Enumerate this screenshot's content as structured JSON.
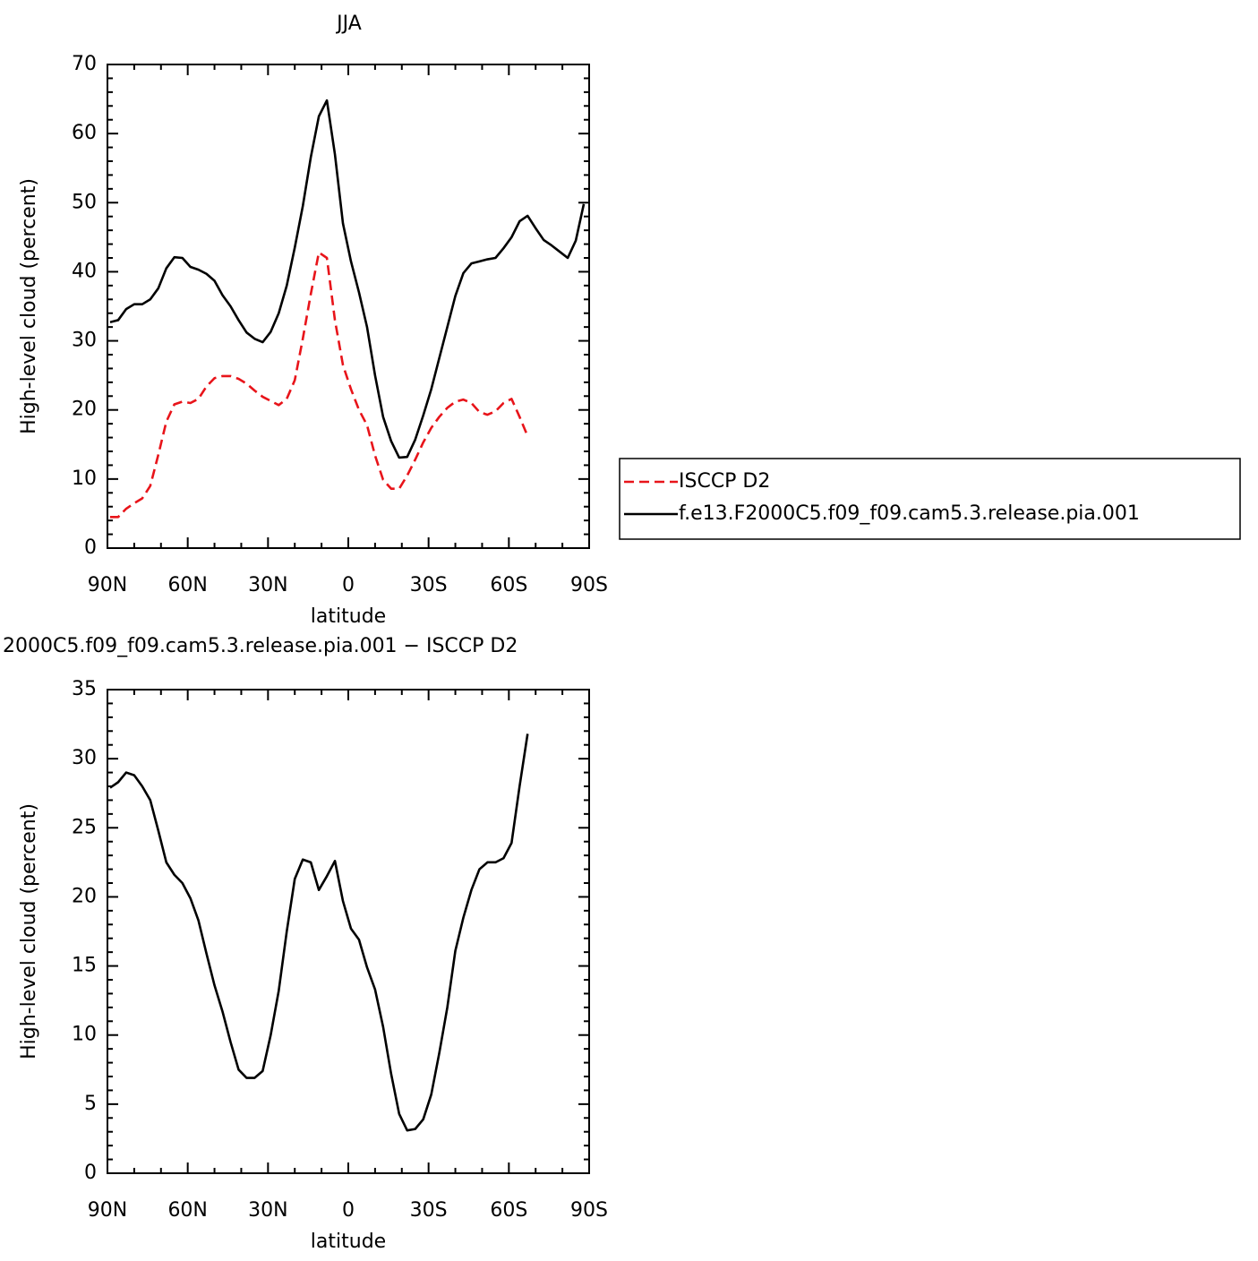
{
  "chart_data": [
    {
      "type": "line",
      "title": "JJA",
      "xlabel": "latitude",
      "ylabel": "High-level cloud (percent)",
      "x": [
        89,
        86,
        83,
        80,
        77,
        74,
        71,
        68,
        65,
        62,
        59,
        56,
        53,
        50,
        47,
        44,
        41,
        38,
        35,
        32,
        29,
        26,
        23,
        20,
        17,
        14,
        11,
        8,
        5,
        2,
        -1,
        -4,
        -7,
        -10,
        -13,
        -16,
        -19,
        -22,
        -25,
        -28,
        -31,
        -34,
        -37,
        -40,
        -43,
        -46,
        -49,
        -52,
        -55,
        -58,
        -61,
        -64,
        -67,
        -70,
        -73,
        -76,
        -79,
        -82,
        -85,
        -88
      ],
      "series": [
        {
          "name": "ISCCP D2",
          "color": "#e8141a",
          "linestyle": "dashed",
          "values": [
            4.5,
            4.5,
            5.7,
            6.5,
            7.2,
            9.0,
            13.5,
            18.3,
            20.8,
            21.2,
            21.0,
            21.6,
            23.4,
            24.6,
            24.9,
            24.9,
            24.5,
            23.8,
            22.8,
            21.9,
            21.3,
            20.7,
            21.6,
            24.3,
            30.3,
            36.8,
            42.8,
            42.0,
            33.0,
            26.5,
            23.0,
            20.0,
            17.8,
            13.4,
            9.9,
            8.6,
            8.6,
            10.5,
            12.8,
            15.3,
            17.4,
            19.0,
            20.3,
            21.2,
            21.5,
            21.0,
            19.7,
            19.3,
            19.8,
            21.0,
            21.6,
            19.0,
            16.2,
            null,
            null,
            null,
            null,
            null,
            null,
            null
          ]
        },
        {
          "name": "f.e13.F2000C5.f09_f09.cam5.3.release.pia.001",
          "color": "#000000",
          "linestyle": "solid",
          "values": [
            32.7,
            33.0,
            34.6,
            35.3,
            35.3,
            36.0,
            37.6,
            40.5,
            42.1,
            42.0,
            40.7,
            40.3,
            39.7,
            38.7,
            36.6,
            35.0,
            33.0,
            31.2,
            30.3,
            29.8,
            31.3,
            34.0,
            38.0,
            43.5,
            49.5,
            56.6,
            62.5,
            64.8,
            57.0,
            47.0,
            41.5,
            37.0,
            32.0,
            25.0,
            19.0,
            15.5,
            13.1,
            13.2,
            15.7,
            19.2,
            23.0,
            27.5,
            32.0,
            36.5,
            39.8,
            41.2,
            41.5,
            41.8,
            42.0,
            43.4,
            45.0,
            47.3,
            48.1,
            46.3,
            44.6,
            43.8,
            42.9,
            42.0,
            44.5,
            49.8
          ]
        }
      ],
      "xlim": [
        90,
        -90
      ],
      "xticks": [
        {
          "value": 90,
          "label": "90N"
        },
        {
          "value": 60,
          "label": "60N"
        },
        {
          "value": 30,
          "label": "30N"
        },
        0,
        {
          "value": -30,
          "label": "30S"
        },
        {
          "value": -60,
          "label": "60S"
        },
        {
          "value": -90,
          "label": "90S"
        }
      ],
      "ylim": [
        0,
        70
      ],
      "yticks": [
        0,
        10,
        20,
        30,
        40,
        50,
        60,
        70
      ],
      "legend": "right"
    },
    {
      "type": "line",
      "title": "2000C5.f09_f09.cam5.3.release.pia.001 − ISCCP D2",
      "xlabel": "latitude",
      "ylabel": "High-level cloud (percent)",
      "x": [
        89,
        86,
        83,
        80,
        77,
        74,
        71,
        68,
        65,
        62,
        59,
        56,
        53,
        50,
        47,
        44,
        41,
        38,
        35,
        32,
        29,
        26,
        23,
        20,
        17,
        14,
        11,
        8,
        5,
        2,
        -1,
        -4,
        -7,
        -10,
        -13,
        -16,
        -19,
        -22,
        -25,
        -28,
        -31,
        -34,
        -37,
        -40,
        -43,
        -46,
        -49,
        -52,
        -55,
        -58,
        -61,
        -64,
        -67,
        -70,
        -73,
        -76,
        -79,
        -82,
        -85,
        -88
      ],
      "series": [
        {
          "color": "#000000",
          "linestyle": "solid",
          "values": [
            27.9,
            28.3,
            29.0,
            28.8,
            28.0,
            27.0,
            24.8,
            22.5,
            21.6,
            21.0,
            19.9,
            18.3,
            15.9,
            13.6,
            11.7,
            9.5,
            7.5,
            6.9,
            6.9,
            7.4,
            10.0,
            13.2,
            17.5,
            21.3,
            22.7,
            22.5,
            20.5,
            21.5,
            22.6,
            19.7,
            17.7,
            16.9,
            14.9,
            13.3,
            10.6,
            7.2,
            4.3,
            3.1,
            3.2,
            3.9,
            5.7,
            8.7,
            12.0,
            16.1,
            18.5,
            20.5,
            22.0,
            22.5,
            22.5,
            22.8,
            23.9,
            28.0,
            31.8,
            null,
            null,
            null,
            null,
            null,
            null,
            null
          ]
        }
      ],
      "xlim": [
        90,
        -90
      ],
      "xticks": [
        {
          "value": 90,
          "label": "90N"
        },
        {
          "value": 60,
          "label": "60N"
        },
        {
          "value": 30,
          "label": "30N"
        },
        0,
        {
          "value": -30,
          "label": "30S"
        },
        {
          "value": -60,
          "label": "60S"
        },
        {
          "value": -90,
          "label": "90S"
        }
      ],
      "ylim": [
        0,
        35
      ],
      "yticks": [
        0,
        5,
        10,
        15,
        20,
        25,
        30,
        35
      ]
    }
  ]
}
